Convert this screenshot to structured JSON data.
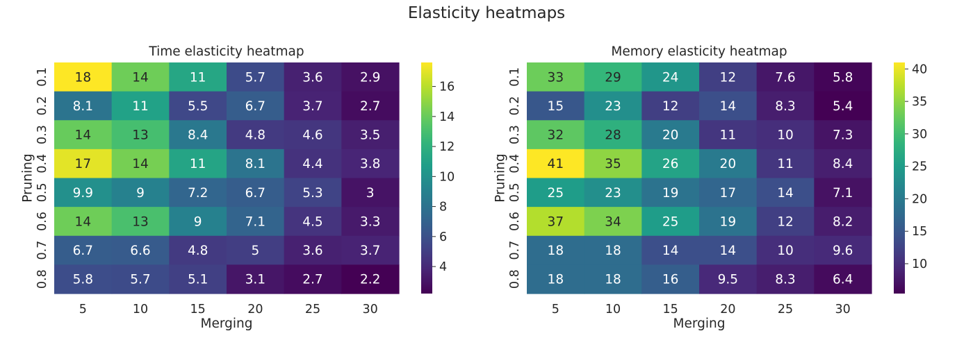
{
  "figure": {
    "title": "Elasticity heatmaps"
  },
  "colors": {
    "background": "#ffffff",
    "text": "#262626",
    "colormap": "viridis"
  },
  "chart_data": [
    {
      "type": "heatmap",
      "title": "Time elasticity heatmap",
      "xlabel": "Merging",
      "ylabel": "Pruning",
      "x": [
        "5",
        "10",
        "15",
        "20",
        "25",
        "30"
      ],
      "y": [
        "0.1",
        "0.2",
        "0.3",
        "0.4",
        "0.5",
        "0.6",
        "0.7",
        "0.8"
      ],
      "values": [
        [
          17.6,
          14.2,
          11.3,
          5.7,
          3.6,
          2.9
        ],
        [
          8.1,
          11.0,
          5.5,
          6.7,
          3.7,
          2.7
        ],
        [
          14.0,
          13.0,
          8.4,
          4.8,
          4.6,
          3.5
        ],
        [
          17.0,
          14.4,
          11.2,
          8.1,
          4.4,
          3.8
        ],
        [
          9.9,
          9.0,
          7.2,
          6.7,
          5.3,
          3.0
        ],
        [
          14.2,
          13.1,
          9.0,
          7.1,
          4.5,
          3.3
        ],
        [
          6.7,
          6.6,
          4.8,
          5.0,
          3.6,
          3.7
        ],
        [
          5.8,
          5.7,
          5.1,
          3.1,
          2.7,
          2.2
        ]
      ],
      "labels": [
        [
          "18",
          "14",
          "11",
          "5.7",
          "3.6",
          "2.9"
        ],
        [
          "8.1",
          "11",
          "5.5",
          "6.7",
          "3.7",
          "2.7"
        ],
        [
          "14",
          "13",
          "8.4",
          "4.8",
          "4.6",
          "3.5"
        ],
        [
          "17",
          "14",
          "11",
          "8.1",
          "4.4",
          "3.8"
        ],
        [
          "9.9",
          "9",
          "7.2",
          "6.7",
          "5.3",
          "3"
        ],
        [
          "14",
          "13",
          "9",
          "7.1",
          "4.5",
          "3.3"
        ],
        [
          "6.7",
          "6.6",
          "4.8",
          "5",
          "3.6",
          "3.7"
        ],
        [
          "5.8",
          "5.7",
          "5.1",
          "3.1",
          "2.7",
          "2.2"
        ]
      ],
      "vmin": 2.2,
      "vmax": 17.6,
      "colorbar_ticks": [
        4,
        6,
        8,
        10,
        12,
        14,
        16
      ]
    },
    {
      "type": "heatmap",
      "title": "Memory elasticity heatmap",
      "xlabel": "Merging",
      "ylabel": "Pruning",
      "x": [
        "5",
        "10",
        "15",
        "20",
        "25",
        "30"
      ],
      "y": [
        "0.1",
        "0.2",
        "0.3",
        "0.4",
        "0.5",
        "0.6",
        "0.7",
        "0.8"
      ],
      "values": [
        [
          33,
          29,
          24,
          12,
          7.6,
          5.8
        ],
        [
          15,
          23,
          12,
          14,
          8.3,
          5.4
        ],
        [
          32,
          28,
          20,
          11,
          10,
          7.3
        ],
        [
          41,
          35,
          26,
          20,
          11,
          8.4
        ],
        [
          25,
          23,
          19,
          17,
          14,
          7.1
        ],
        [
          37,
          34,
          25,
          19,
          12,
          8.2
        ],
        [
          18,
          18,
          14,
          14,
          10,
          9.6
        ],
        [
          18,
          18,
          16,
          9.5,
          8.3,
          6.4
        ]
      ],
      "labels": [
        [
          "33",
          "29",
          "24",
          "12",
          "7.6",
          "5.8"
        ],
        [
          "15",
          "23",
          "12",
          "14",
          "8.3",
          "5.4"
        ],
        [
          "32",
          "28",
          "20",
          "11",
          "10",
          "7.3"
        ],
        [
          "41",
          "35",
          "26",
          "20",
          "11",
          "8.4"
        ],
        [
          "25",
          "23",
          "19",
          "17",
          "14",
          "7.1"
        ],
        [
          "37",
          "34",
          "25",
          "19",
          "12",
          "8.2"
        ],
        [
          "18",
          "18",
          "14",
          "14",
          "10",
          "9.6"
        ],
        [
          "18",
          "18",
          "16",
          "9.5",
          "8.3",
          "6.4"
        ]
      ],
      "vmin": 5.4,
      "vmax": 41,
      "colorbar_ticks": [
        10,
        15,
        20,
        25,
        30,
        35,
        40
      ]
    }
  ]
}
